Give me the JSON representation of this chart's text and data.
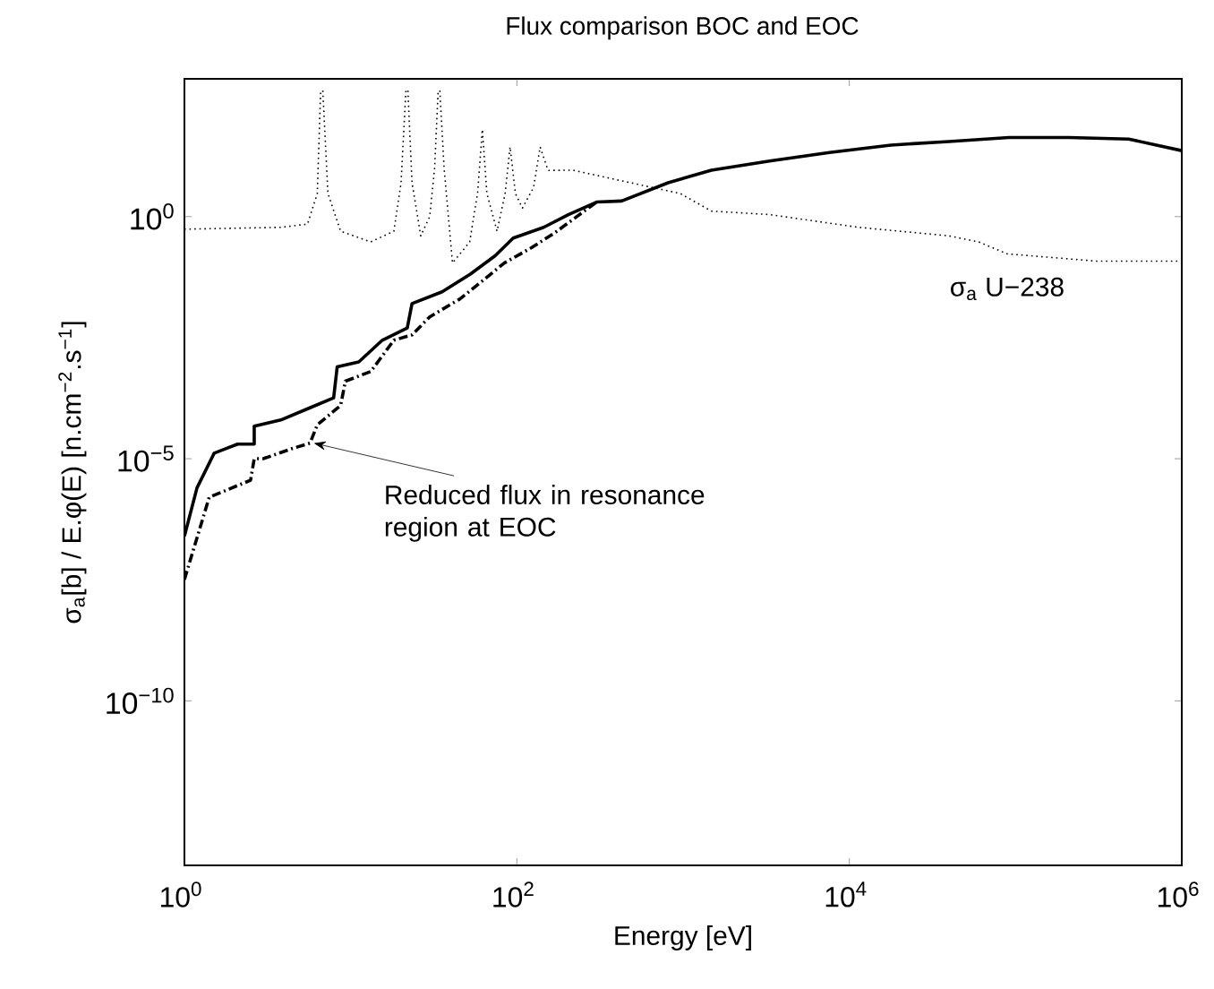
{
  "chart_data": {
    "type": "line",
    "title": "Flux comparison BOC and EOC",
    "xlabel": "Energy [eV]",
    "ylabel": "σ$_{a}$[b] / E.φ(E)  [n.cm$^{−2}$.s$^{−1}$]",
    "log": "xy",
    "grid": false,
    "xlim": [
      1,
      1000000
    ],
    "ylim": [
      4e-14,
      700
    ],
    "xticks": [
      {
        "value": 1,
        "label": "10$^{0}$"
      },
      {
        "value": 100,
        "label": "10$^{2}$"
      },
      {
        "value": 10000,
        "label": "10$^{4}$"
      },
      {
        "value": 1000000,
        "label": "10$^{6}$"
      }
    ],
    "yticks": [
      {
        "value": 1e-10,
        "label": "10$^{−10}$"
      },
      {
        "value": 1e-05,
        "label": "10$^{−5}$"
      },
      {
        "value": 1,
        "label": "10$^{0}$"
      }
    ],
    "series": [
      {
        "color": "#000000",
        "line_style": "solid",
        "x": [
          1,
          1.19,
          1.51,
          2.09,
          2.63,
          2.63,
          3.8,
          5.6,
          7.9,
          8.3,
          11.2,
          15.5,
          21.9,
          23.4,
          35.5,
          52.5,
          74,
          95,
          145,
          204,
          302,
          427,
          813,
          1480,
          3310,
          7590,
          17800,
          39800,
          91200,
          209000,
          479000,
          1000000
        ],
        "values": [
          2.5e-07,
          2.5e-06,
          1.3e-05,
          2e-05,
          2e-05,
          4.7e-05,
          6.3e-05,
          0.00011,
          0.00018,
          0.00079,
          0.001,
          0.0028,
          0.005,
          0.016,
          0.028,
          0.065,
          0.155,
          0.36,
          0.6,
          1.1,
          2,
          2.1,
          5,
          9.1,
          14,
          21,
          30,
          35.5,
          43,
          43,
          40,
          23
        ]
      },
      {
        "color": "#000000",
        "line_style": "dashed",
        "x": [
          1,
          1.41,
          2.5,
          2.63,
          2.98,
          4.4,
          5.7,
          6.3,
          8.7,
          9.3,
          13.2,
          18.2,
          23.4,
          29.9,
          45.5,
          62,
          84,
          123,
          170,
          302
        ],
        "values": [
          3.2e-08,
          1.6e-06,
          3.6e-06,
          1e-05,
          1e-05,
          1.6e-05,
          2.1e-05,
          5e-05,
          0.000126,
          0.0004,
          0.00063,
          0.0028,
          0.0036,
          0.0085,
          0.02,
          0.047,
          0.11,
          0.23,
          0.47,
          2
        ]
      },
      {
        "name": "σ$_{a}$ U−238",
        "color": "#000000",
        "line_style": "dotted",
        "x": [
          1,
          3.8,
          5.5,
          6.3,
          6.6,
          6.7,
          6.8,
          7.3,
          8.7,
          13.2,
          18.2,
          20.1,
          21.5,
          21.8,
          22.1,
          23.4,
          26.4,
          29.9,
          32,
          33.6,
          34,
          34.4,
          36.5,
          41,
          52,
          58,
          62,
          66,
          76,
          85,
          91,
          98,
          108,
          126,
          138,
          154,
          217,
          302,
          960,
          1480,
          3310,
          11400,
          39800,
          60000,
          89000,
          310000,
          1000000
        ],
        "values": [
          0.55,
          0.6,
          0.7,
          3,
          400,
          null,
          400,
          3,
          0.5,
          0.3,
          0.5,
          5,
          400,
          null,
          400,
          5,
          0.4,
          1,
          10,
          400,
          null,
          400,
          10,
          0.11,
          0.3,
          3,
          63,
          3,
          0.5,
          3,
          27.5,
          3,
          1.5,
          4,
          27.5,
          9,
          9.1,
          7.1,
          3,
          1.3,
          1.1,
          0.6,
          0.4,
          0.3,
          0.17,
          0.12,
          0.12
        ]
      }
    ],
    "annotations": [
      {
        "text": "Reduced flux in resonance region at EOC",
        "x": 6,
        "y": 2.1e-05
      }
    ]
  }
}
